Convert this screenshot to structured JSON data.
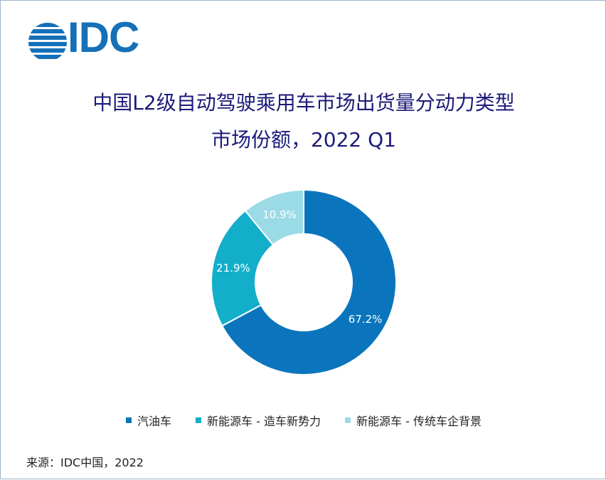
{
  "logo": {
    "text": "IDC"
  },
  "chart_data": {
    "type": "pie",
    "title_line1": "中国L2级自动驾驶乘用车市场出货量分动力类型",
    "title_line2": "市场份额，2022 Q1",
    "categories": [
      "汽油车",
      "新能源车 - 造车新势力",
      "新能源车 - 传统车企背景"
    ],
    "values": [
      67.2,
      21.9,
      10.9
    ],
    "labels": [
      "67.2%",
      "21.9%",
      "10.9%"
    ],
    "colors": [
      "#0a75bd",
      "#12aeca",
      "#9adbe6"
    ],
    "label_color": "#ffffff",
    "legend_position": "bottom",
    "donut": true
  },
  "source": "来源：IDC中国，2022"
}
